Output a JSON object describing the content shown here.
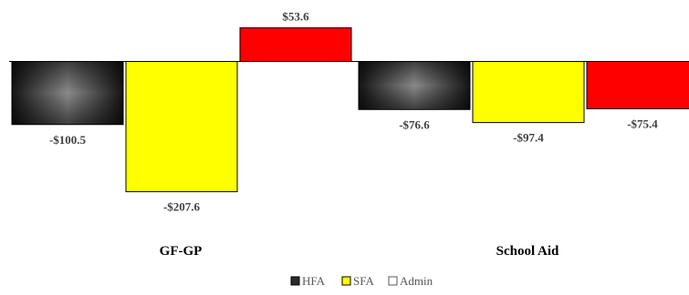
{
  "chart_data": {
    "type": "bar",
    "categories": [
      "GF-GP",
      "School Aid"
    ],
    "series": [
      {
        "name": "HFA",
        "values": [
          -100.5,
          -76.6
        ],
        "color": "#2b2b2b"
      },
      {
        "name": "SFA",
        "values": [
          -207.6,
          -97.4
        ],
        "color": "#ffff00"
      },
      {
        "name": "Admin",
        "values": [
          53.6,
          -75.4
        ],
        "color": "#ff0000"
      }
    ],
    "data_labels": [
      [
        "-$100.5",
        "-$76.6"
      ],
      [
        "-$207.6",
        "-$97.4"
      ],
      [
        "$53.6",
        "-$75.4"
      ]
    ],
    "title": "",
    "xlabel": "",
    "ylabel": "",
    "grid": false,
    "legend_position": "bottom"
  }
}
